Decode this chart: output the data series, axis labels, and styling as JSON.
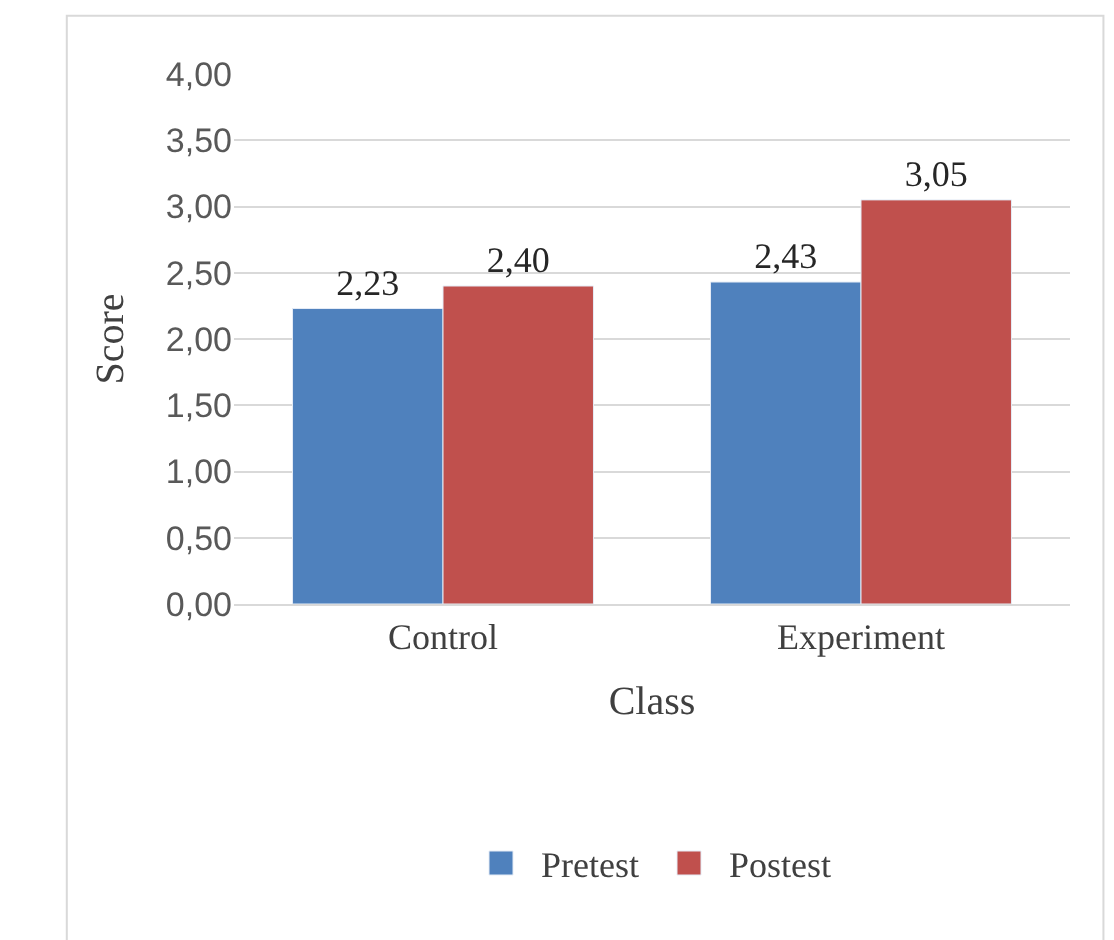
{
  "chart_data": {
    "type": "bar",
    "xlabel": "Class",
    "ylabel": "Score",
    "categories": [
      "Control",
      "Experiment"
    ],
    "series": [
      {
        "name": "Pretest",
        "color": "#4f81bd",
        "values": [
          2.23,
          2.43
        ],
        "value_labels": [
          "2,23",
          "2,43"
        ]
      },
      {
        "name": "Postest",
        "color": "#c0504d",
        "values": [
          2.4,
          3.05
        ],
        "value_labels": [
          "2,40",
          "3,05"
        ]
      }
    ],
    "ylim": [
      0,
      4
    ],
    "yticks": [
      {
        "value": 0,
        "label": "0,00"
      },
      {
        "value": 0.5,
        "label": "0,50"
      },
      {
        "value": 1,
        "label": "1,00"
      },
      {
        "value": 1.5,
        "label": "1,50"
      },
      {
        "value": 2,
        "label": "2,00"
      },
      {
        "value": 2.5,
        "label": "2,50"
      },
      {
        "value": 3,
        "label": "3,00"
      },
      {
        "value": 3.5,
        "label": "3,50"
      },
      {
        "value": 4,
        "label": "4,00"
      }
    ],
    "grid": "y",
    "legend": "bottom"
  }
}
